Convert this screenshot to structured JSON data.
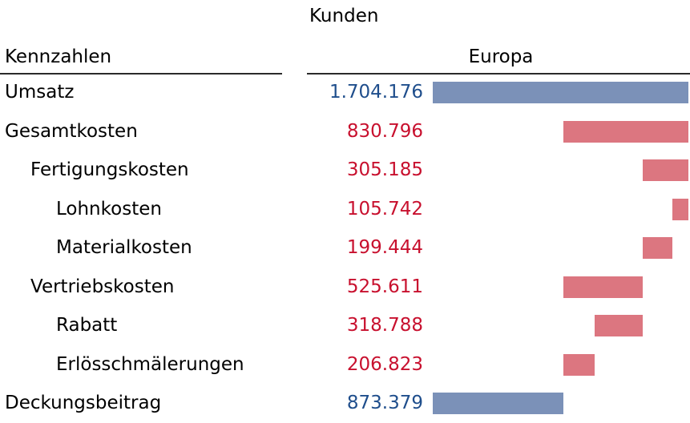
{
  "header": {
    "column_group": "Kunden",
    "label_column": "Kennzahlen",
    "series_name": "Europa"
  },
  "colors": {
    "positive_text": "#1f4e8c",
    "negative_text": "#c8102e",
    "positive_bar": "#7b91b8",
    "negative_bar": "#dc7680"
  },
  "chart_data": {
    "type": "bar",
    "subtype": "waterfall",
    "series_name": "Europa",
    "xlim": [
      0,
      1704176
    ],
    "rows": [
      {
        "label": "Umsatz",
        "display": "1.704.176",
        "value": 1704176,
        "level": 0,
        "kind": "total",
        "start": 0,
        "end": 1704176
      },
      {
        "label": "Gesamtkosten",
        "display": "830.796",
        "value": -830796,
        "level": 0,
        "kind": "cost",
        "start": 873380,
        "end": 1704176
      },
      {
        "label": "Fertigungskosten",
        "display": "305.185",
        "value": -305185,
        "level": 1,
        "kind": "cost",
        "start": 1398991,
        "end": 1704176
      },
      {
        "label": "Lohnkosten",
        "display": "105.742",
        "value": -105742,
        "level": 2,
        "kind": "cost",
        "start": 1598434,
        "end": 1704176
      },
      {
        "label": "Materialkosten",
        "display": "199.444",
        "value": -199444,
        "level": 2,
        "kind": "cost",
        "start": 1398991,
        "end": 1598434
      },
      {
        "label": "Vertriebskosten",
        "display": "525.611",
        "value": -525611,
        "level": 1,
        "kind": "cost",
        "start": 873380,
        "end": 1398991
      },
      {
        "label": "Rabatt",
        "display": "318.788",
        "value": -318788,
        "level": 2,
        "kind": "cost",
        "start": 1080203,
        "end": 1398991
      },
      {
        "label": "Erlösschmälerungen",
        "display": "206.823",
        "value": -206823,
        "level": 2,
        "kind": "cost",
        "start": 873380,
        "end": 1080203
      },
      {
        "label": "Deckungsbeitrag",
        "display": "873.379",
        "value": 873379,
        "level": 0,
        "kind": "total",
        "start": 0,
        "end": 873379
      }
    ]
  }
}
